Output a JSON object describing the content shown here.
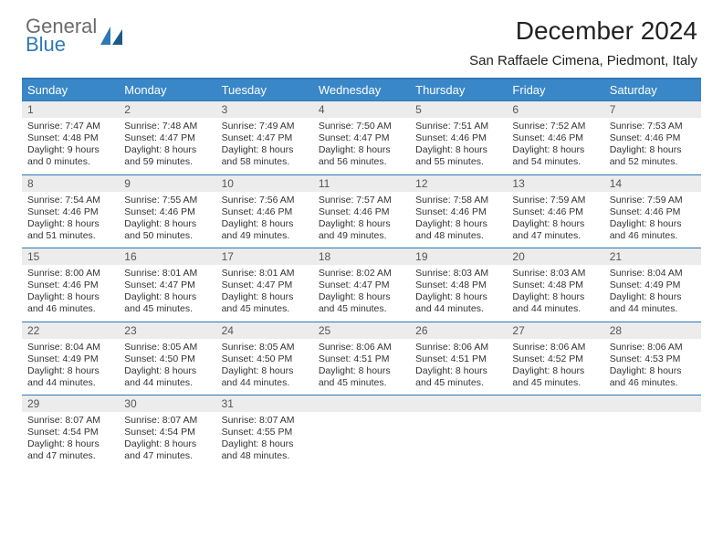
{
  "logo": {
    "line1": "General",
    "line2": "Blue"
  },
  "title": "December 2024",
  "location": "San Raffaele Cimena, Piedmont, Italy",
  "colors": {
    "header_bg": "#3a87c8",
    "border": "#2f78b7",
    "daynum_bg": "#ececec",
    "text": "#222222",
    "logo_gray": "#6b6b6b",
    "logo_blue": "#2f78b7"
  },
  "day_names": [
    "Sunday",
    "Monday",
    "Tuesday",
    "Wednesday",
    "Thursday",
    "Friday",
    "Saturday"
  ],
  "weeks": [
    [
      {
        "n": "1",
        "sunrise": "Sunrise: 7:47 AM",
        "sunset": "Sunset: 4:48 PM",
        "day1": "Daylight: 9 hours",
        "day2": "and 0 minutes."
      },
      {
        "n": "2",
        "sunrise": "Sunrise: 7:48 AM",
        "sunset": "Sunset: 4:47 PM",
        "day1": "Daylight: 8 hours",
        "day2": "and 59 minutes."
      },
      {
        "n": "3",
        "sunrise": "Sunrise: 7:49 AM",
        "sunset": "Sunset: 4:47 PM",
        "day1": "Daylight: 8 hours",
        "day2": "and 58 minutes."
      },
      {
        "n": "4",
        "sunrise": "Sunrise: 7:50 AM",
        "sunset": "Sunset: 4:47 PM",
        "day1": "Daylight: 8 hours",
        "day2": "and 56 minutes."
      },
      {
        "n": "5",
        "sunrise": "Sunrise: 7:51 AM",
        "sunset": "Sunset: 4:46 PM",
        "day1": "Daylight: 8 hours",
        "day2": "and 55 minutes."
      },
      {
        "n": "6",
        "sunrise": "Sunrise: 7:52 AM",
        "sunset": "Sunset: 4:46 PM",
        "day1": "Daylight: 8 hours",
        "day2": "and 54 minutes."
      },
      {
        "n": "7",
        "sunrise": "Sunrise: 7:53 AM",
        "sunset": "Sunset: 4:46 PM",
        "day1": "Daylight: 8 hours",
        "day2": "and 52 minutes."
      }
    ],
    [
      {
        "n": "8",
        "sunrise": "Sunrise: 7:54 AM",
        "sunset": "Sunset: 4:46 PM",
        "day1": "Daylight: 8 hours",
        "day2": "and 51 minutes."
      },
      {
        "n": "9",
        "sunrise": "Sunrise: 7:55 AM",
        "sunset": "Sunset: 4:46 PM",
        "day1": "Daylight: 8 hours",
        "day2": "and 50 minutes."
      },
      {
        "n": "10",
        "sunrise": "Sunrise: 7:56 AM",
        "sunset": "Sunset: 4:46 PM",
        "day1": "Daylight: 8 hours",
        "day2": "and 49 minutes."
      },
      {
        "n": "11",
        "sunrise": "Sunrise: 7:57 AM",
        "sunset": "Sunset: 4:46 PM",
        "day1": "Daylight: 8 hours",
        "day2": "and 49 minutes."
      },
      {
        "n": "12",
        "sunrise": "Sunrise: 7:58 AM",
        "sunset": "Sunset: 4:46 PM",
        "day1": "Daylight: 8 hours",
        "day2": "and 48 minutes."
      },
      {
        "n": "13",
        "sunrise": "Sunrise: 7:59 AM",
        "sunset": "Sunset: 4:46 PM",
        "day1": "Daylight: 8 hours",
        "day2": "and 47 minutes."
      },
      {
        "n": "14",
        "sunrise": "Sunrise: 7:59 AM",
        "sunset": "Sunset: 4:46 PM",
        "day1": "Daylight: 8 hours",
        "day2": "and 46 minutes."
      }
    ],
    [
      {
        "n": "15",
        "sunrise": "Sunrise: 8:00 AM",
        "sunset": "Sunset: 4:46 PM",
        "day1": "Daylight: 8 hours",
        "day2": "and 46 minutes."
      },
      {
        "n": "16",
        "sunrise": "Sunrise: 8:01 AM",
        "sunset": "Sunset: 4:47 PM",
        "day1": "Daylight: 8 hours",
        "day2": "and 45 minutes."
      },
      {
        "n": "17",
        "sunrise": "Sunrise: 8:01 AM",
        "sunset": "Sunset: 4:47 PM",
        "day1": "Daylight: 8 hours",
        "day2": "and 45 minutes."
      },
      {
        "n": "18",
        "sunrise": "Sunrise: 8:02 AM",
        "sunset": "Sunset: 4:47 PM",
        "day1": "Daylight: 8 hours",
        "day2": "and 45 minutes."
      },
      {
        "n": "19",
        "sunrise": "Sunrise: 8:03 AM",
        "sunset": "Sunset: 4:48 PM",
        "day1": "Daylight: 8 hours",
        "day2": "and 44 minutes."
      },
      {
        "n": "20",
        "sunrise": "Sunrise: 8:03 AM",
        "sunset": "Sunset: 4:48 PM",
        "day1": "Daylight: 8 hours",
        "day2": "and 44 minutes."
      },
      {
        "n": "21",
        "sunrise": "Sunrise: 8:04 AM",
        "sunset": "Sunset: 4:49 PM",
        "day1": "Daylight: 8 hours",
        "day2": "and 44 minutes."
      }
    ],
    [
      {
        "n": "22",
        "sunrise": "Sunrise: 8:04 AM",
        "sunset": "Sunset: 4:49 PM",
        "day1": "Daylight: 8 hours",
        "day2": "and 44 minutes."
      },
      {
        "n": "23",
        "sunrise": "Sunrise: 8:05 AM",
        "sunset": "Sunset: 4:50 PM",
        "day1": "Daylight: 8 hours",
        "day2": "and 44 minutes."
      },
      {
        "n": "24",
        "sunrise": "Sunrise: 8:05 AM",
        "sunset": "Sunset: 4:50 PM",
        "day1": "Daylight: 8 hours",
        "day2": "and 44 minutes."
      },
      {
        "n": "25",
        "sunrise": "Sunrise: 8:06 AM",
        "sunset": "Sunset: 4:51 PM",
        "day1": "Daylight: 8 hours",
        "day2": "and 45 minutes."
      },
      {
        "n": "26",
        "sunrise": "Sunrise: 8:06 AM",
        "sunset": "Sunset: 4:51 PM",
        "day1": "Daylight: 8 hours",
        "day2": "and 45 minutes."
      },
      {
        "n": "27",
        "sunrise": "Sunrise: 8:06 AM",
        "sunset": "Sunset: 4:52 PM",
        "day1": "Daylight: 8 hours",
        "day2": "and 45 minutes."
      },
      {
        "n": "28",
        "sunrise": "Sunrise: 8:06 AM",
        "sunset": "Sunset: 4:53 PM",
        "day1": "Daylight: 8 hours",
        "day2": "and 46 minutes."
      }
    ],
    [
      {
        "n": "29",
        "sunrise": "Sunrise: 8:07 AM",
        "sunset": "Sunset: 4:54 PM",
        "day1": "Daylight: 8 hours",
        "day2": "and 47 minutes."
      },
      {
        "n": "30",
        "sunrise": "Sunrise: 8:07 AM",
        "sunset": "Sunset: 4:54 PM",
        "day1": "Daylight: 8 hours",
        "day2": "and 47 minutes."
      },
      {
        "n": "31",
        "sunrise": "Sunrise: 8:07 AM",
        "sunset": "Sunset: 4:55 PM",
        "day1": "Daylight: 8 hours",
        "day2": "and 48 minutes."
      },
      {
        "empty": true
      },
      {
        "empty": true
      },
      {
        "empty": true
      },
      {
        "empty": true
      }
    ]
  ]
}
